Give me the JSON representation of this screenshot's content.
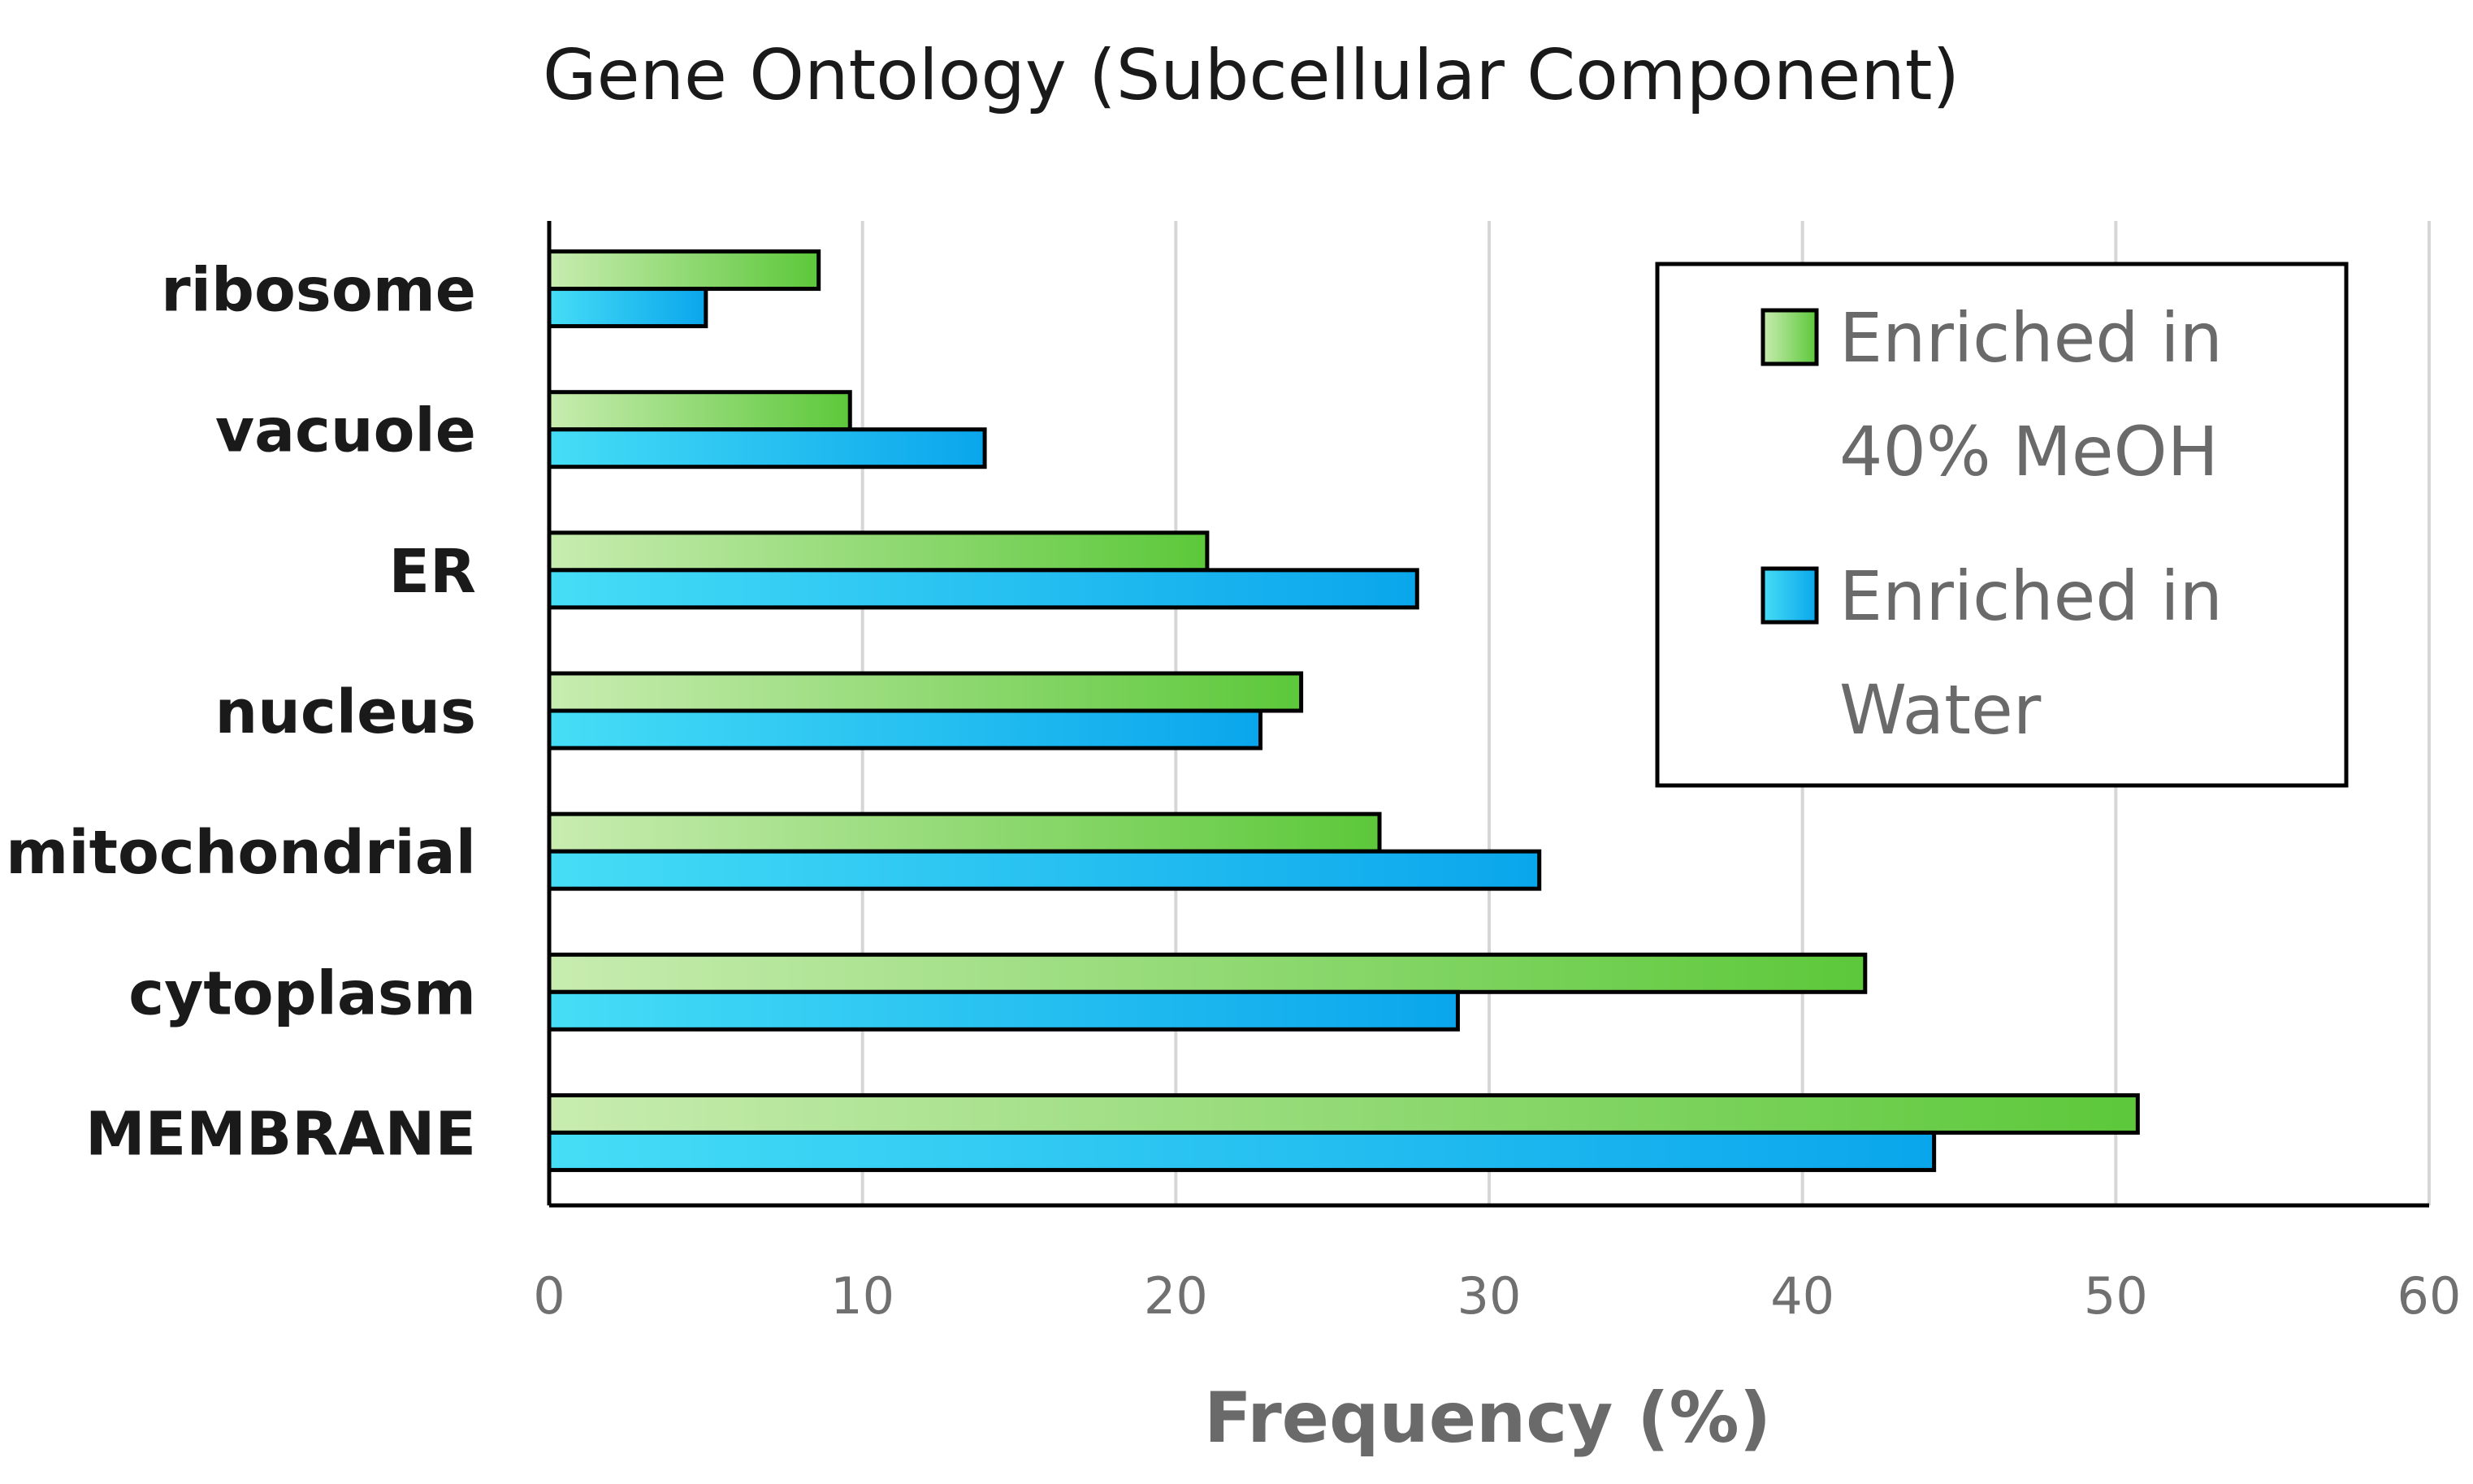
{
  "chart_data": {
    "type": "bar",
    "orientation": "horizontal",
    "title": "Gene Ontology (Subcellular Component)",
    "xlabel": "Frequency (%)",
    "ylabel": "",
    "xlim": [
      0,
      60
    ],
    "xticks": [
      0,
      10,
      20,
      30,
      40,
      50,
      60
    ],
    "grid": true,
    "categories": [
      "ribosome",
      "vacuole",
      "ER",
      "nucleus",
      "mitochondrial",
      "cytoplasm",
      "MEMBRANE"
    ],
    "series": [
      {
        "name": "Enriched in 40% MeOH",
        "legend_lines": [
          "Enriched in",
          "40% MeOH"
        ],
        "color_start": "#c8ecb0",
        "color_end": "#5cc83a",
        "values": [
          8.6,
          9.6,
          21.0,
          24.0,
          26.5,
          42.0,
          50.7
        ]
      },
      {
        "name": "Enriched in Water",
        "legend_lines": [
          "Enriched in",
          "Water"
        ],
        "color_start": "#46ddf6",
        "color_end": "#0aa6ec",
        "values": [
          5.0,
          13.9,
          27.7,
          22.7,
          31.6,
          29.0,
          44.2
        ]
      }
    ],
    "legend_position": "top-right"
  }
}
